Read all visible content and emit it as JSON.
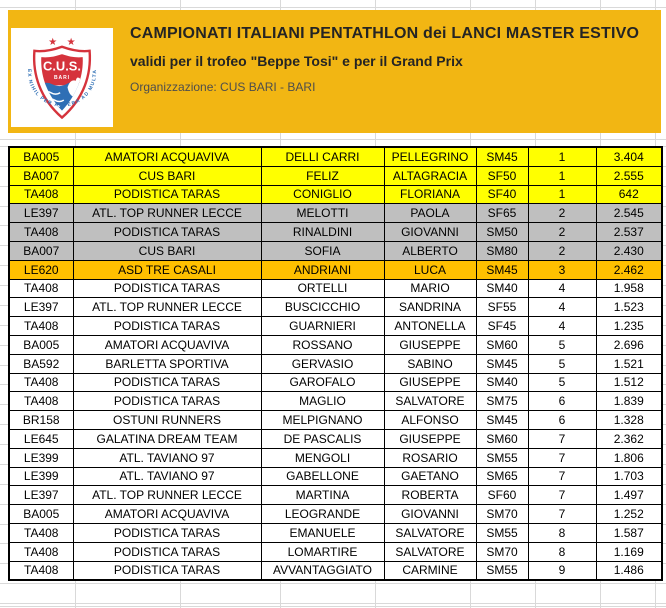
{
  "header": {
    "title": "CAMPIONATI ITALIANI PENTATHLON dei LANCI MASTER ESTIVO",
    "subtitle": "validi per il trofeo \"Beppe Tosi\" e per il Grand Prix",
    "organization": "Organizzazione: CUS BARI - BARI",
    "banner_color": "#F2B613",
    "logo": {
      "acronym": "C.U.S.",
      "city": "BARI",
      "motto": "EX NIHIL PER ASPERA AD MULTA",
      "red": "#D5333C",
      "blue": "#2F6FB5"
    }
  },
  "table": {
    "columns": [
      "code",
      "team",
      "surname",
      "firstname",
      "category",
      "rank",
      "score"
    ],
    "row_colors": {
      "gold": "#FFFF00",
      "silver": "#BFBFBF",
      "bronze": "#FFC000",
      "none": "#FFFFFF"
    },
    "rows": [
      {
        "code": "BA005",
        "team": "AMATORI ACQUAVIVA",
        "surname": "DELLI CARRI",
        "firstname": "PELLEGRINO",
        "category": "SM45",
        "rank": "1",
        "score": "3.404",
        "highlight": "gold"
      },
      {
        "code": "BA007",
        "team": "CUS BARI",
        "surname": "FELIZ",
        "firstname": "ALTAGRACIA",
        "category": "SF50",
        "rank": "1",
        "score": "2.555",
        "highlight": "gold"
      },
      {
        "code": "TA408",
        "team": "PODISTICA TARAS",
        "surname": "CONIGLIO",
        "firstname": "FLORIANA",
        "category": "SF40",
        "rank": "1",
        "score": "642",
        "highlight": "gold"
      },
      {
        "code": "LE397",
        "team": "ATL. TOP RUNNER LECCE",
        "surname": "MELOTTI",
        "firstname": "PAOLA",
        "category": "SF65",
        "rank": "2",
        "score": "2.545",
        "highlight": "silver"
      },
      {
        "code": "TA408",
        "team": "PODISTICA TARAS",
        "surname": "RINALDINI",
        "firstname": "GIOVANNI",
        "category": "SM50",
        "rank": "2",
        "score": "2.537",
        "highlight": "silver"
      },
      {
        "code": "BA007",
        "team": "CUS BARI",
        "surname": "SOFIA",
        "firstname": "ALBERTO",
        "category": "SM80",
        "rank": "2",
        "score": "2.430",
        "highlight": "silver"
      },
      {
        "code": "LE620",
        "team": "ASD TRE CASALI",
        "surname": "ANDRIANI",
        "firstname": "LUCA",
        "category": "SM45",
        "rank": "3",
        "score": "2.462",
        "highlight": "bronze"
      },
      {
        "code": "TA408",
        "team": "PODISTICA TARAS",
        "surname": "ORTELLI",
        "firstname": "MARIO",
        "category": "SM40",
        "rank": "4",
        "score": "1.958",
        "highlight": "none"
      },
      {
        "code": "LE397",
        "team": "ATL. TOP RUNNER LECCE",
        "surname": "BUSCICCHIO",
        "firstname": "SANDRINA",
        "category": "SF55",
        "rank": "4",
        "score": "1.523",
        "highlight": "none"
      },
      {
        "code": "TA408",
        "team": "PODISTICA TARAS",
        "surname": "GUARNIERI",
        "firstname": "ANTONELLA",
        "category": "SF45",
        "rank": "4",
        "score": "1.235",
        "highlight": "none"
      },
      {
        "code": "BA005",
        "team": "AMATORI ACQUAVIVA",
        "surname": "ROSSANO",
        "firstname": "GIUSEPPE",
        "category": "SM60",
        "rank": "5",
        "score": "2.696",
        "highlight": "none"
      },
      {
        "code": "BA592",
        "team": "BARLETTA SPORTIVA",
        "surname": "GERVASIO",
        "firstname": "SABINO",
        "category": "SM45",
        "rank": "5",
        "score": "1.521",
        "highlight": "none"
      },
      {
        "code": "TA408",
        "team": "PODISTICA TARAS",
        "surname": "GAROFALO",
        "firstname": "GIUSEPPE",
        "category": "SM40",
        "rank": "5",
        "score": "1.512",
        "highlight": "none"
      },
      {
        "code": "TA408",
        "team": "PODISTICA TARAS",
        "surname": "MAGLIO",
        "firstname": "SALVATORE",
        "category": "SM75",
        "rank": "6",
        "score": "1.839",
        "highlight": "none"
      },
      {
        "code": "BR158",
        "team": "OSTUNI RUNNERS",
        "surname": "MELPIGNANO",
        "firstname": "ALFONSO",
        "category": "SM45",
        "rank": "6",
        "score": "1.328",
        "highlight": "none"
      },
      {
        "code": "LE645",
        "team": "GALATINA DREAM TEAM",
        "surname": "DE PASCALIS",
        "firstname": "GIUSEPPE",
        "category": "SM60",
        "rank": "7",
        "score": "2.362",
        "highlight": "none"
      },
      {
        "code": "LE399",
        "team": "ATL. TAVIANO 97",
        "surname": "MENGOLI",
        "firstname": "ROSARIO",
        "category": "SM55",
        "rank": "7",
        "score": "1.806",
        "highlight": "none"
      },
      {
        "code": "LE399",
        "team": "ATL. TAVIANO 97",
        "surname": "GABELLONE",
        "firstname": "GAETANO",
        "category": "SM65",
        "rank": "7",
        "score": "1.703",
        "highlight": "none"
      },
      {
        "code": "LE397",
        "team": "ATL. TOP RUNNER LECCE",
        "surname": "MARTINA",
        "firstname": "ROBERTA",
        "category": "SF60",
        "rank": "7",
        "score": "1.497",
        "highlight": "none"
      },
      {
        "code": "BA005",
        "team": "AMATORI ACQUAVIVA",
        "surname": "LEOGRANDE",
        "firstname": "GIOVANNI",
        "category": "SM70",
        "rank": "7",
        "score": "1.252",
        "highlight": "none"
      },
      {
        "code": "TA408",
        "team": "PODISTICA TARAS",
        "surname": "EMANUELE",
        "firstname": "SALVATORE",
        "category": "SM55",
        "rank": "8",
        "score": "1.587",
        "highlight": "none"
      },
      {
        "code": "TA408",
        "team": "PODISTICA TARAS",
        "surname": "LOMARTIRE",
        "firstname": "SALVATORE",
        "category": "SM70",
        "rank": "8",
        "score": "1.169",
        "highlight": "none"
      },
      {
        "code": "TA408",
        "team": "PODISTICA TARAS",
        "surname": "AVVANTAGGIATO",
        "firstname": "CARMINE",
        "category": "SM55",
        "rank": "9",
        "score": "1.486",
        "highlight": "none"
      }
    ]
  }
}
